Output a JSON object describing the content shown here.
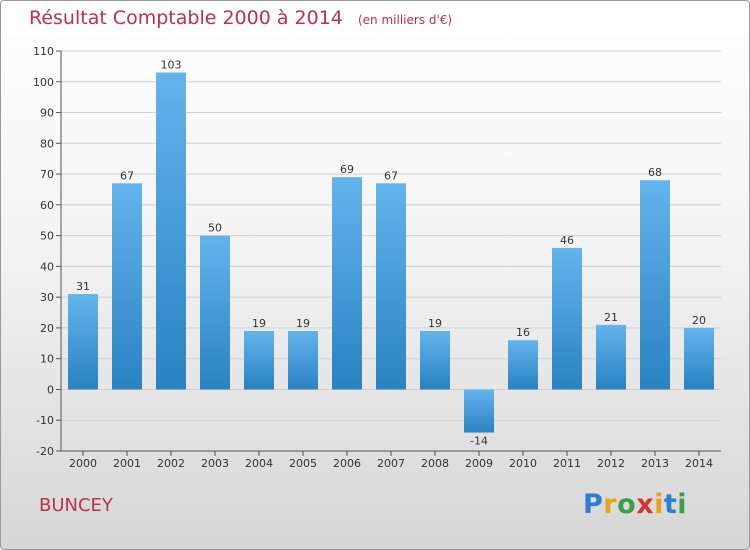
{
  "header": {
    "title": "Résultat Comptable 2000 à 2014",
    "unit": "(en milliers d'€)"
  },
  "footer": {
    "commune": "BUNCEY",
    "logo_text": "Proxiti",
    "logo_letters": [
      {
        "char": "P",
        "color": "#2a7fd4"
      },
      {
        "char": "r",
        "color": "#e8a418"
      },
      {
        "char": "o",
        "color": "#3aa04a"
      },
      {
        "char": "x",
        "color": "#d4342c"
      },
      {
        "char": "i",
        "color": "#e8a418"
      },
      {
        "char": "t",
        "color": "#2a7fd4"
      },
      {
        "char": "i",
        "color": "#3aa04a"
      }
    ]
  },
  "colors": {
    "bar_light": "#63b4ec",
    "bar_dark": "#2a82c2",
    "title": "#c0304a",
    "grid": "#cfcfcf",
    "axis": "#555555"
  },
  "chart_data": {
    "type": "bar",
    "title": "Résultat Comptable 2000 à 2014",
    "xlabel": "",
    "ylabel": "",
    "categories": [
      "2000",
      "2001",
      "2002",
      "2003",
      "2004",
      "2005",
      "2006",
      "2007",
      "2008",
      "2009",
      "2010",
      "2011",
      "2012",
      "2013",
      "2014"
    ],
    "values": [
      31,
      67,
      103,
      50,
      19,
      19,
      69,
      67,
      19,
      -14,
      16,
      46,
      21,
      68,
      20
    ],
    "ylim": [
      -20,
      110
    ],
    "yticks": [
      -20,
      -10,
      0,
      10,
      20,
      30,
      40,
      50,
      60,
      70,
      80,
      90,
      100,
      110
    ],
    "grid": true,
    "legend": "none"
  }
}
